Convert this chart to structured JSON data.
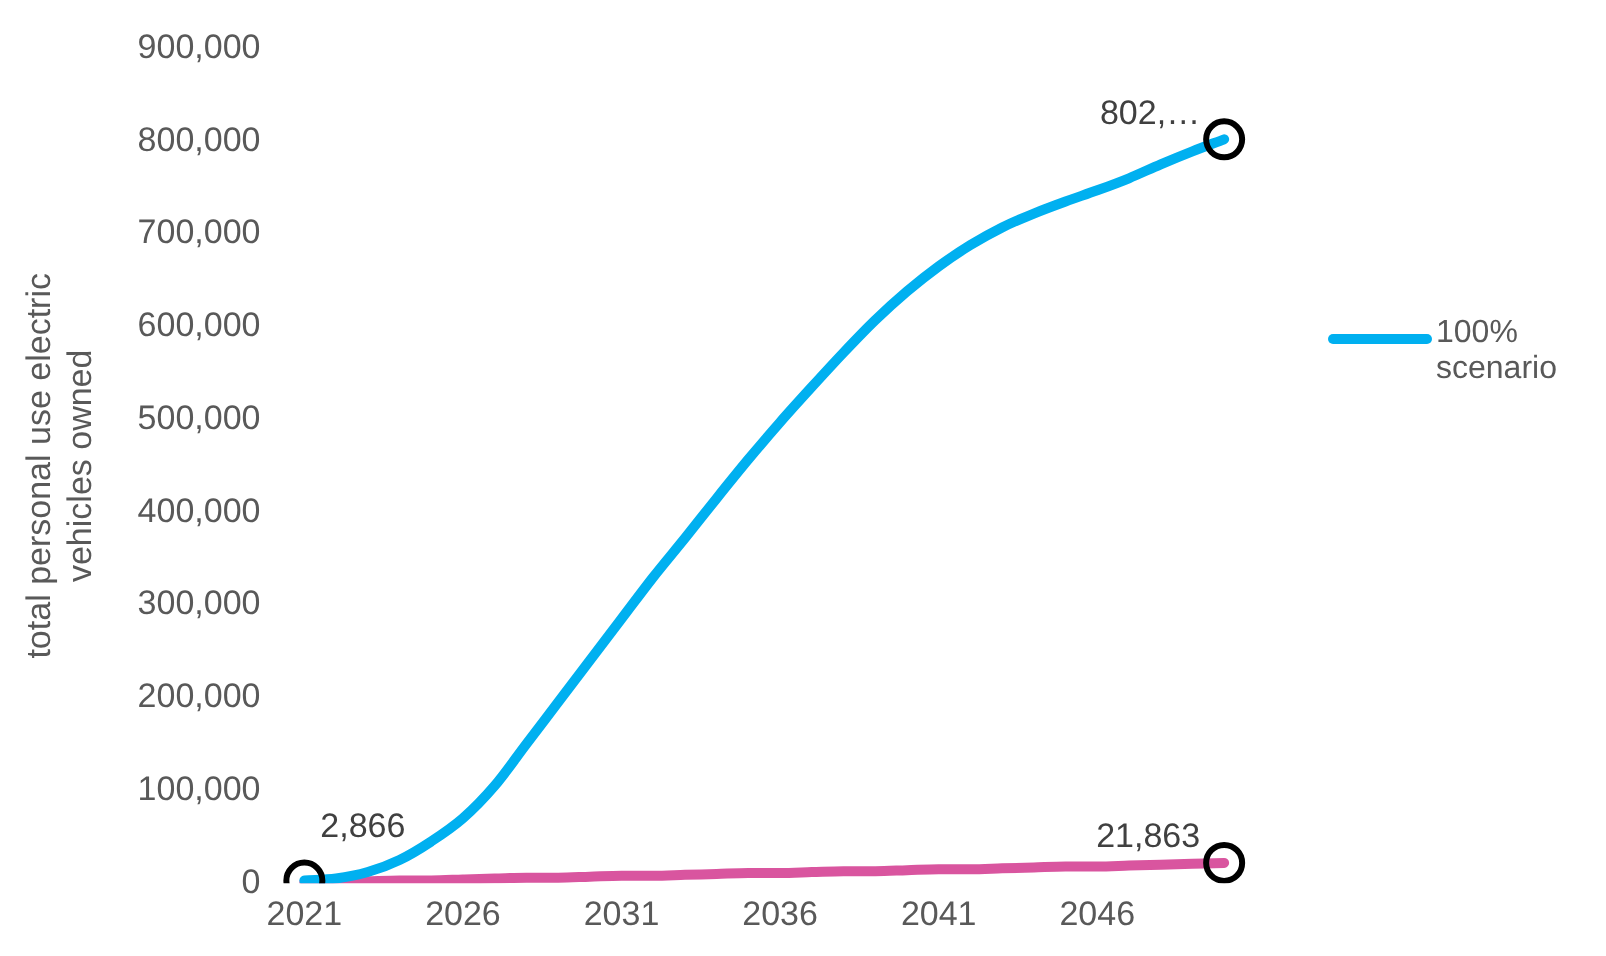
{
  "chart_data": {
    "type": "line",
    "ylabel": "total personal use electric vehicles owned",
    "categories": [
      "2021",
      null,
      null,
      null,
      null,
      "2026",
      null,
      null,
      null,
      null,
      "2031",
      null,
      null,
      null,
      null,
      "2036",
      null,
      null,
      null,
      null,
      "2041",
      null,
      null,
      null,
      null,
      "2046",
      null,
      null,
      null,
      null
    ],
    "series": [
      {
        "name": "100% scenario",
        "color": "#00b0f0",
        "values": [
          2866,
          5000,
          12000,
          25000,
          45000,
          70000,
          105000,
          150000,
          195000,
          240000,
          285000,
          330000,
          372000,
          415000,
          457000,
          497000,
          535000,
          572000,
          607000,
          638000,
          665000,
          688000,
          707000,
          722000,
          735000,
          747000,
          760000,
          775000,
          789000,
          802000
        ],
        "value_labels": [
          "2,866",
          null,
          null,
          null,
          null,
          null,
          null,
          null,
          null,
          null,
          null,
          null,
          null,
          null,
          null,
          null,
          null,
          null,
          null,
          null,
          null,
          null,
          null,
          null,
          null,
          null,
          null,
          null,
          null,
          "802,…"
        ]
      },
      {
        "color": "#d9559f",
        "values": [
          1000,
          1000,
          2000,
          3000,
          3000,
          4000,
          5000,
          6000,
          6000,
          7000,
          8000,
          8000,
          9000,
          10000,
          11000,
          11000,
          12000,
          13000,
          13000,
          14000,
          15000,
          15000,
          16000,
          17000,
          18000,
          18000,
          19000,
          20000,
          21000,
          21863
        ],
        "value_labels": [
          null,
          null,
          null,
          null,
          null,
          null,
          null,
          null,
          null,
          null,
          null,
          null,
          null,
          null,
          null,
          null,
          null,
          null,
          null,
          null,
          null,
          null,
          null,
          null,
          null,
          null,
          null,
          null,
          null,
          "21,863"
        ]
      }
    ],
    "ylim": [
      0,
      900000
    ],
    "yticks": [
      0,
      {
        "value": 100000,
        "label": "100,000"
      },
      {
        "value": 200000,
        "label": "200,000"
      },
      {
        "value": 300000,
        "label": "300,000"
      },
      {
        "value": 400000,
        "label": "400,000"
      },
      {
        "value": 500000,
        "label": "500,000"
      },
      {
        "value": 600000,
        "label": "600,000"
      },
      {
        "value": 700000,
        "label": "700,000"
      },
      {
        "value": 800000,
        "label": "800,000"
      },
      {
        "value": 900000,
        "label": "900,000"
      }
    ],
    "grid": false,
    "legend": "right",
    "line_style": "solid"
  }
}
